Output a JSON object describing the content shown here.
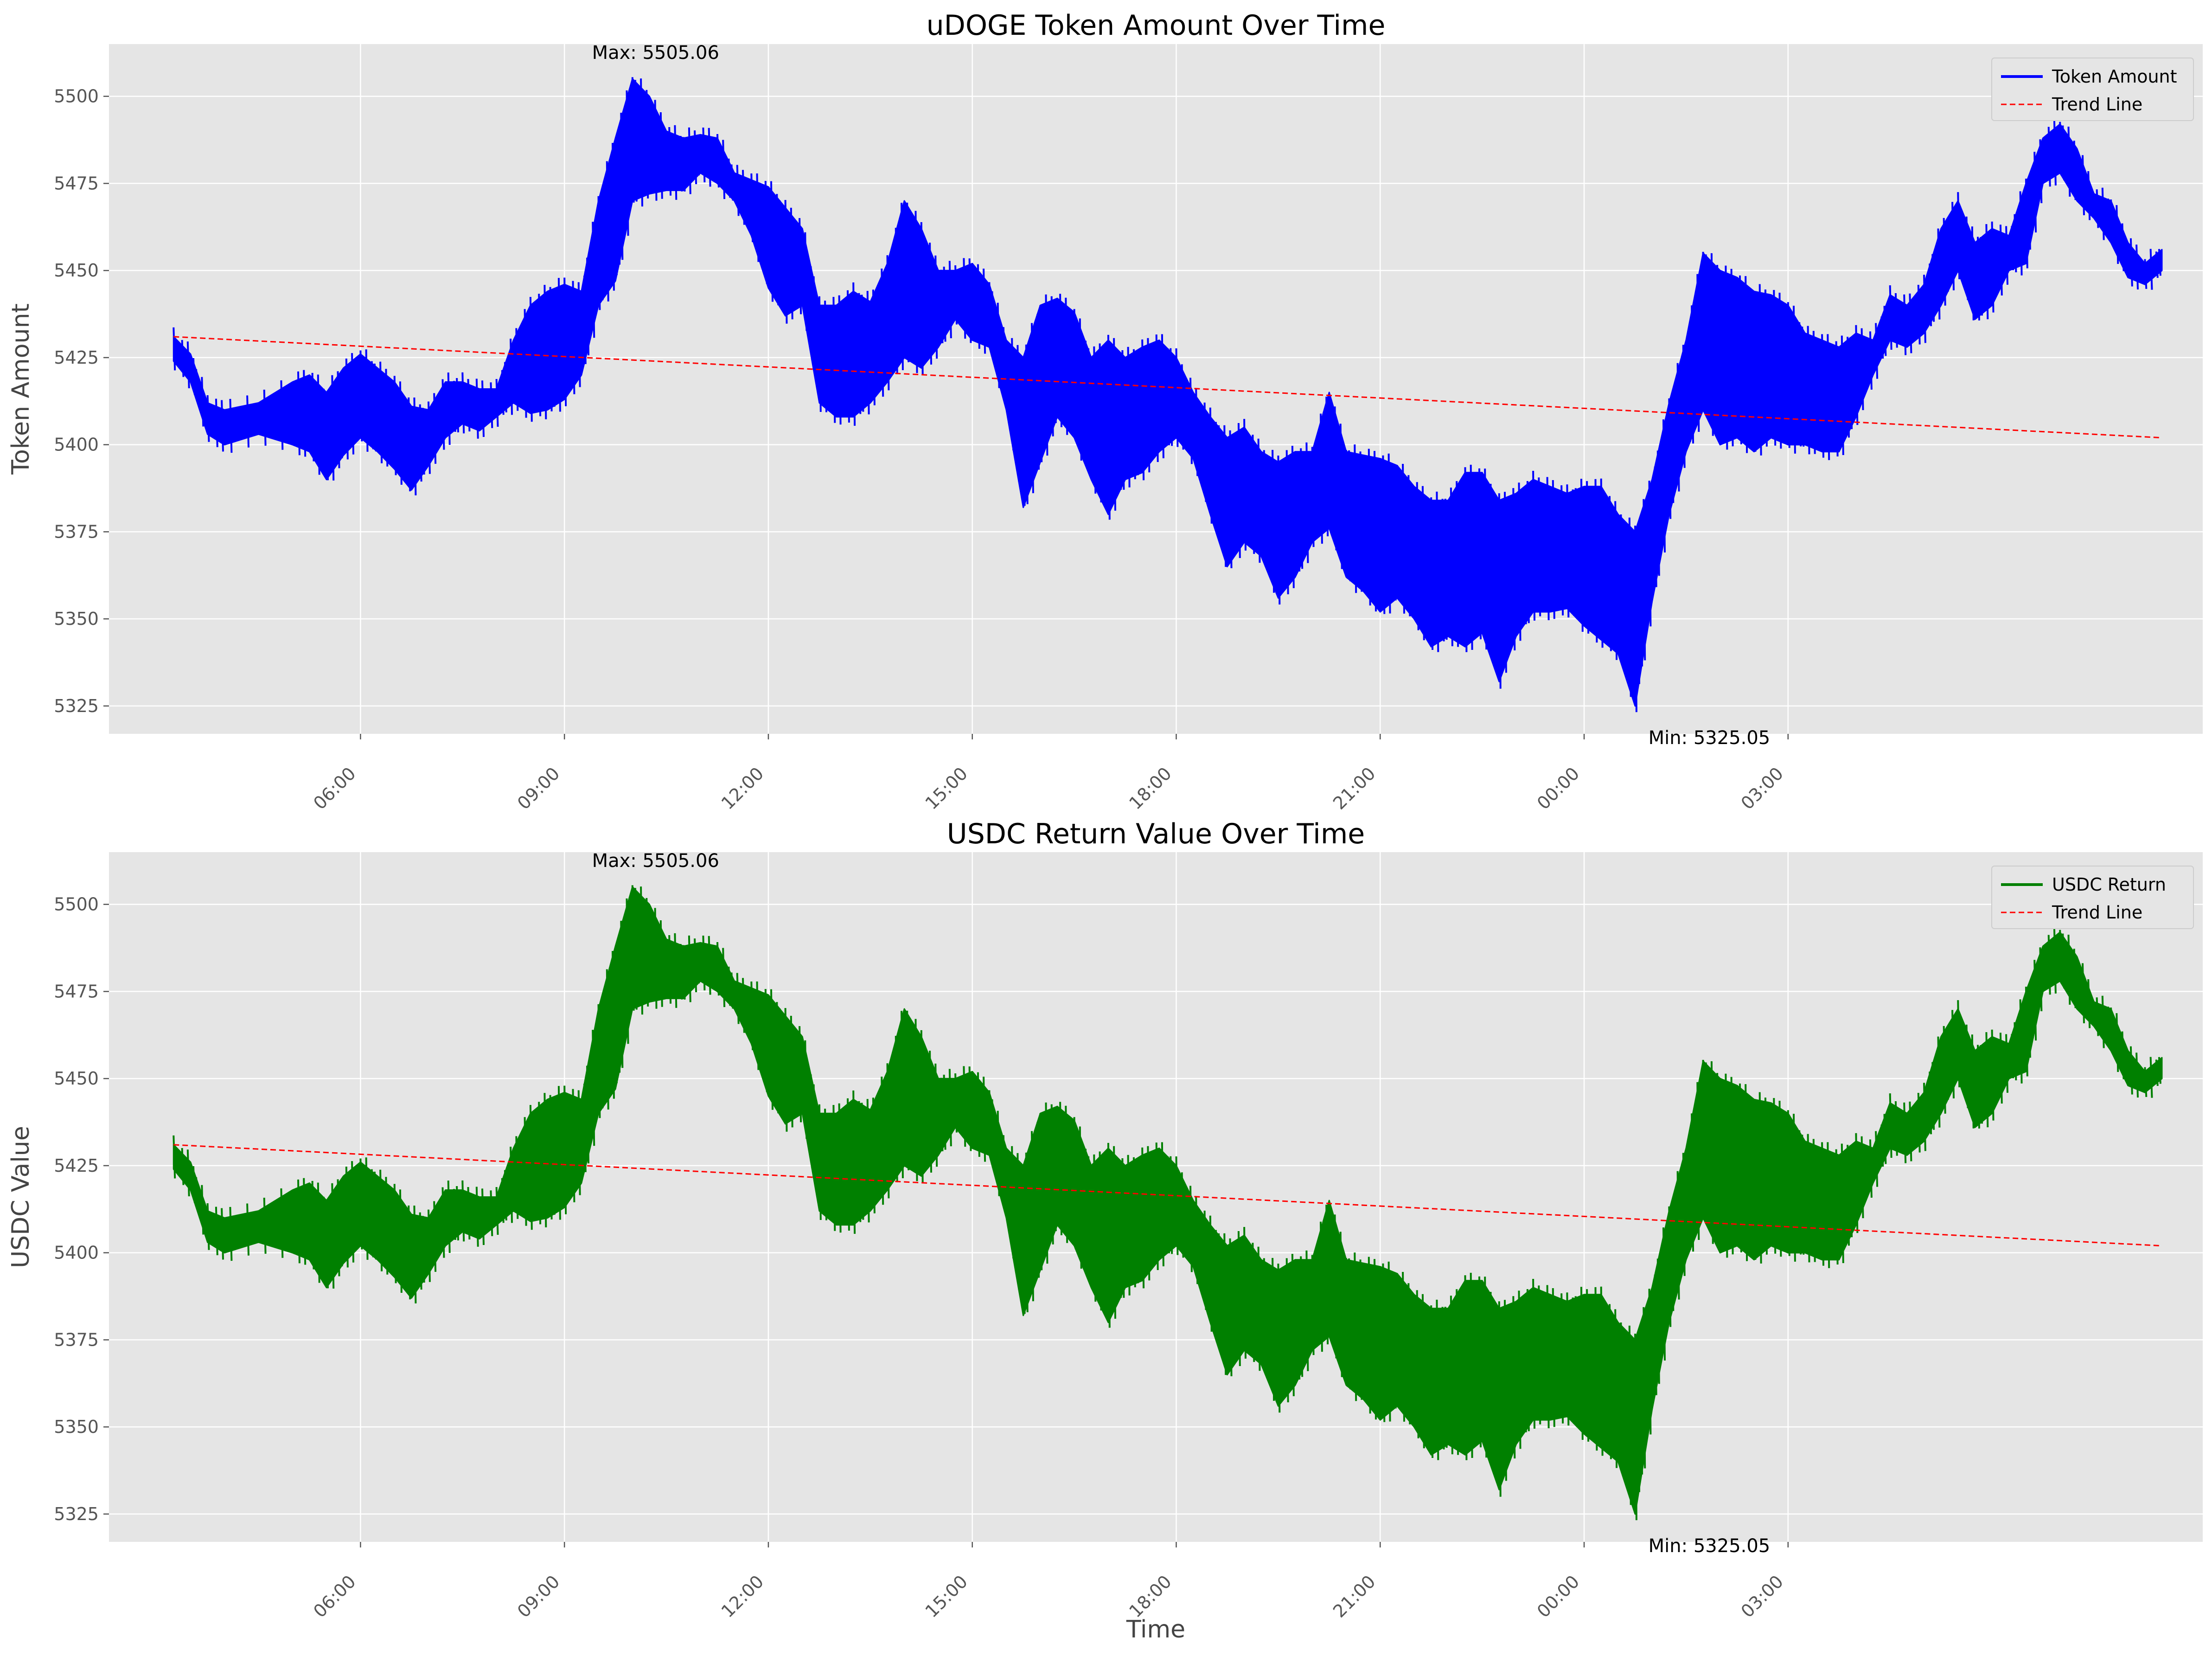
{
  "chart_data": [
    {
      "type": "line",
      "title": "uDOGE Token Amount Over Time",
      "xlabel": "",
      "ylabel": "Token Amount",
      "x_ticks": [
        "06:00",
        "09:00",
        "12:00",
        "15:00",
        "18:00",
        "21:00",
        "00:00",
        "03:00"
      ],
      "y_ticks": [
        5325,
        5350,
        5375,
        5400,
        5425,
        5450,
        5475,
        5500
      ],
      "ylim": [
        5317,
        5515
      ],
      "x_range_hours": [
        0.5,
        26.0
      ],
      "grid": true,
      "legend_position": "top-right",
      "series": [
        {
          "name": "Token Amount",
          "color": "#0000ff",
          "envelope": [
            [
              3.25,
              5424,
              5431
            ],
            [
              3.5,
              5418,
              5426
            ],
            [
              3.75,
              5403,
              5412
            ],
            [
              4.0,
              5400,
              5410
            ],
            [
              4.5,
              5403,
              5412
            ],
            [
              5.0,
              5400,
              5418
            ],
            [
              5.25,
              5398,
              5420
            ],
            [
              5.5,
              5390,
              5415
            ],
            [
              5.75,
              5397,
              5422
            ],
            [
              6.0,
              5402,
              5426
            ],
            [
              6.25,
              5398,
              5422
            ],
            [
              6.5,
              5393,
              5418
            ],
            [
              6.75,
              5387,
              5411
            ],
            [
              7.0,
              5394,
              5410
            ],
            [
              7.25,
              5402,
              5418
            ],
            [
              7.5,
              5406,
              5418
            ],
            [
              7.75,
              5404,
              5416
            ],
            [
              8.0,
              5408,
              5416
            ],
            [
              8.25,
              5412,
              5430
            ],
            [
              8.5,
              5409,
              5440
            ],
            [
              8.75,
              5410,
              5444
            ],
            [
              9.0,
              5413,
              5446
            ],
            [
              9.25,
              5420,
              5444
            ],
            [
              9.5,
              5440,
              5470
            ],
            [
              9.75,
              5447,
              5488
            ],
            [
              10.0,
              5470,
              5505
            ],
            [
              10.25,
              5472,
              5500
            ],
            [
              10.5,
              5473,
              5490
            ],
            [
              10.75,
              5473,
              5488
            ],
            [
              11.0,
              5478,
              5489
            ],
            [
              11.25,
              5475,
              5488
            ],
            [
              11.5,
              5470,
              5478
            ],
            [
              11.75,
              5460,
              5476
            ],
            [
              12.0,
              5445,
              5474
            ],
            [
              12.25,
              5437,
              5468
            ],
            [
              12.5,
              5440,
              5462
            ],
            [
              12.75,
              5412,
              5440
            ],
            [
              13.0,
              5408,
              5440
            ],
            [
              13.25,
              5408,
              5444
            ],
            [
              13.5,
              5412,
              5441
            ],
            [
              13.75,
              5418,
              5452
            ],
            [
              14.0,
              5425,
              5470
            ],
            [
              14.25,
              5422,
              5462
            ],
            [
              14.5,
              5428,
              5450
            ],
            [
              14.75,
              5436,
              5450
            ],
            [
              15.0,
              5430,
              5452
            ],
            [
              15.25,
              5428,
              5446
            ],
            [
              15.5,
              5410,
              5430
            ],
            [
              15.75,
              5382,
              5425
            ],
            [
              16.0,
              5395,
              5440
            ],
            [
              16.25,
              5408,
              5442
            ],
            [
              16.5,
              5402,
              5438
            ],
            [
              16.75,
              5390,
              5425
            ],
            [
              17.0,
              5380,
              5430
            ],
            [
              17.25,
              5390,
              5425
            ],
            [
              17.5,
              5392,
              5428
            ],
            [
              17.75,
              5398,
              5430
            ],
            [
              18.0,
              5402,
              5425
            ],
            [
              18.25,
              5396,
              5415
            ],
            [
              18.5,
              5380,
              5408
            ],
            [
              18.75,
              5365,
              5402
            ],
            [
              19.0,
              5372,
              5405
            ],
            [
              19.25,
              5368,
              5398
            ],
            [
              19.5,
              5356,
              5395
            ],
            [
              19.75,
              5362,
              5398
            ],
            [
              20.0,
              5372,
              5398
            ],
            [
              20.25,
              5376,
              5415
            ],
            [
              20.5,
              5362,
              5398
            ],
            [
              20.75,
              5358,
              5397
            ],
            [
              21.0,
              5352,
              5396
            ],
            [
              21.25,
              5356,
              5394
            ],
            [
              21.5,
              5350,
              5388
            ],
            [
              21.75,
              5342,
              5384
            ],
            [
              22.0,
              5345,
              5384
            ],
            [
              22.25,
              5342,
              5392
            ],
            [
              22.5,
              5346,
              5392
            ],
            [
              22.75,
              5332,
              5384
            ],
            [
              23.0,
              5345,
              5386
            ],
            [
              23.25,
              5352,
              5390
            ],
            [
              23.5,
              5352,
              5388
            ],
            [
              23.75,
              5353,
              5386
            ],
            [
              24.0,
              5348,
              5388
            ],
            [
              24.25,
              5344,
              5388
            ],
            [
              24.5,
              5340,
              5380
            ],
            [
              24.75,
              5325,
              5375
            ],
            [
              25.0,
              5355,
              5390
            ],
            [
              25.25,
              5380,
              5412
            ],
            [
              25.5,
              5398,
              5430
            ],
            [
              25.75,
              5410,
              5455
            ],
            [
              26.0,
              5400,
              5450
            ],
            [
              26.25,
              5402,
              5448
            ],
            [
              26.5,
              5398,
              5444
            ],
            [
              26.75,
              5402,
              5443
            ],
            [
              27.0,
              5400,
              5440
            ],
            [
              27.25,
              5400,
              5432
            ],
            [
              27.5,
              5398,
              5430
            ],
            [
              27.75,
              5398,
              5428
            ],
            [
              28.0,
              5408,
              5432
            ],
            [
              28.25,
              5420,
              5430
            ],
            [
              28.5,
              5430,
              5443
            ],
            [
              28.75,
              5428,
              5440
            ],
            [
              29.0,
              5432,
              5446
            ],
            [
              29.25,
              5440,
              5462
            ],
            [
              29.5,
              5450,
              5470
            ],
            [
              29.75,
              5436,
              5458
            ],
            [
              30.0,
              5440,
              5462
            ],
            [
              30.25,
              5450,
              5460
            ],
            [
              30.5,
              5452,
              5475
            ],
            [
              30.75,
              5475,
              5488
            ],
            [
              31.0,
              5478,
              5492
            ],
            [
              31.25,
              5470,
              5485
            ],
            [
              31.5,
              5465,
              5472
            ],
            [
              31.75,
              5458,
              5470
            ],
            [
              32.0,
              5448,
              5458
            ],
            [
              32.25,
              5446,
              5452
            ],
            [
              32.5,
              5450,
              5456
            ]
          ]
        },
        {
          "name": "Trend Line",
          "color": "#ff0000",
          "style": "dashed",
          "x": [
            3.25,
            32.5
          ],
          "values": [
            5431,
            5402
          ]
        }
      ],
      "annotations": [
        {
          "text": "Max: 5505.06",
          "x": 10.0,
          "y": 5505.06
        },
        {
          "text": "Min: 5325.05",
          "x": 24.75,
          "y": 5325.05
        }
      ]
    },
    {
      "type": "line",
      "title": "USDC Return Value Over Time",
      "xlabel": "Time",
      "ylabel": "USDC Value",
      "x_ticks": [
        "06:00",
        "09:00",
        "12:00",
        "15:00",
        "18:00",
        "21:00",
        "00:00",
        "03:00"
      ],
      "y_ticks": [
        5325,
        5350,
        5375,
        5400,
        5425,
        5450,
        5475,
        5500
      ],
      "ylim": [
        5317,
        5515
      ],
      "x_range_hours": [
        0.5,
        26.0
      ],
      "grid": true,
      "legend_position": "top-right",
      "series": [
        {
          "name": "USDC Return",
          "color": "#008000",
          "envelope": "same as Token Amount"
        },
        {
          "name": "Trend Line",
          "color": "#ff0000",
          "style": "dashed",
          "x": [
            3.25,
            32.5
          ],
          "values": [
            5431,
            5402
          ]
        }
      ],
      "annotations": [
        {
          "text": "Max: 5505.06",
          "x": 10.0,
          "y": 5505.06
        },
        {
          "text": "Min: 5325.05",
          "x": 24.75,
          "y": 5325.05
        }
      ]
    }
  ]
}
